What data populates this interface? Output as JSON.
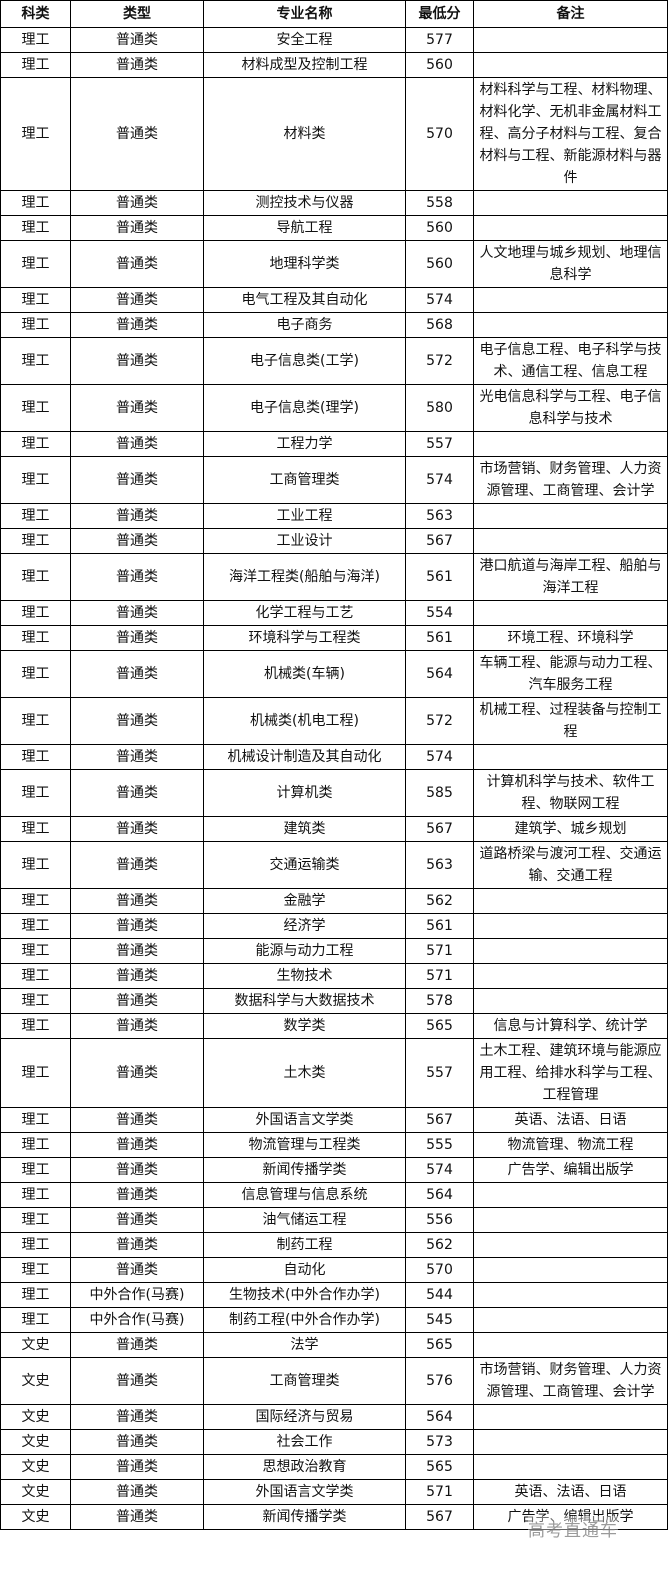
{
  "headers": [
    "科类",
    "类型",
    "专业名称",
    "最低分",
    "备注"
  ],
  "rows": [
    [
      "理工",
      "普通类",
      "安全工程",
      "577",
      ""
    ],
    [
      "理工",
      "普通类",
      "材料成型及控制工程",
      "560",
      ""
    ],
    [
      "理工",
      "普通类",
      "材料类",
      "570",
      "材料科学与工程、材料物理、材料化学、无机非金属材料工程、高分子材料与工程、复合材料与工程、新能源材料与器件"
    ],
    [
      "理工",
      "普通类",
      "测控技术与仪器",
      "558",
      ""
    ],
    [
      "理工",
      "普通类",
      "导航工程",
      "560",
      ""
    ],
    [
      "理工",
      "普通类",
      "地理科学类",
      "560",
      "人文地理与城乡规划、地理信息科学"
    ],
    [
      "理工",
      "普通类",
      "电气工程及其自动化",
      "574",
      ""
    ],
    [
      "理工",
      "普通类",
      "电子商务",
      "568",
      ""
    ],
    [
      "理工",
      "普通类",
      "电子信息类(工学)",
      "572",
      "电子信息工程、电子科学与技术、通信工程、信息工程"
    ],
    [
      "理工",
      "普通类",
      "电子信息类(理学)",
      "580",
      "光电信息科学与工程、电子信息科学与技术"
    ],
    [
      "理工",
      "普通类",
      "工程力学",
      "557",
      ""
    ],
    [
      "理工",
      "普通类",
      "工商管理类",
      "574",
      "市场营销、财务管理、人力资源管理、工商管理、会计学"
    ],
    [
      "理工",
      "普通类",
      "工业工程",
      "563",
      ""
    ],
    [
      "理工",
      "普通类",
      "工业设计",
      "567",
      ""
    ],
    [
      "理工",
      "普通类",
      "海洋工程类(船舶与海洋)",
      "561",
      "港口航道与海岸工程、船舶与海洋工程"
    ],
    [
      "理工",
      "普通类",
      "化学工程与工艺",
      "554",
      ""
    ],
    [
      "理工",
      "普通类",
      "环境科学与工程类",
      "561",
      "环境工程、环境科学"
    ],
    [
      "理工",
      "普通类",
      "机械类(车辆)",
      "564",
      "车辆工程、能源与动力工程、汽车服务工程"
    ],
    [
      "理工",
      "普通类",
      "机械类(机电工程)",
      "572",
      "机械工程、过程装备与控制工程"
    ],
    [
      "理工",
      "普通类",
      "机械设计制造及其自动化",
      "574",
      ""
    ],
    [
      "理工",
      "普通类",
      "计算机类",
      "585",
      "计算机科学与技术、软件工程、物联网工程"
    ],
    [
      "理工",
      "普通类",
      "建筑类",
      "567",
      "建筑学、城乡规划"
    ],
    [
      "理工",
      "普通类",
      "交通运输类",
      "563",
      "道路桥梁与渡河工程、交通运输、交通工程"
    ],
    [
      "理工",
      "普通类",
      "金融学",
      "562",
      ""
    ],
    [
      "理工",
      "普通类",
      "经济学",
      "561",
      ""
    ],
    [
      "理工",
      "普通类",
      "能源与动力工程",
      "571",
      ""
    ],
    [
      "理工",
      "普通类",
      "生物技术",
      "571",
      ""
    ],
    [
      "理工",
      "普通类",
      "数据科学与大数据技术",
      "578",
      ""
    ],
    [
      "理工",
      "普通类",
      "数学类",
      "565",
      "信息与计算科学、统计学"
    ],
    [
      "理工",
      "普通类",
      "土木类",
      "557",
      "土木工程、建筑环境与能源应用工程、给排水科学与工程、工程管理"
    ],
    [
      "理工",
      "普通类",
      "外国语言文学类",
      "567",
      "英语、法语、日语"
    ],
    [
      "理工",
      "普通类",
      "物流管理与工程类",
      "555",
      "物流管理、物流工程"
    ],
    [
      "理工",
      "普通类",
      "新闻传播学类",
      "574",
      "广告学、编辑出版学"
    ],
    [
      "理工",
      "普通类",
      "信息管理与信息系统",
      "564",
      ""
    ],
    [
      "理工",
      "普通类",
      "油气储运工程",
      "556",
      ""
    ],
    [
      "理工",
      "普通类",
      "制药工程",
      "562",
      ""
    ],
    [
      "理工",
      "普通类",
      "自动化",
      "570",
      ""
    ],
    [
      "理工",
      "中外合作(马赛)",
      "生物技术(中外合作办学)",
      "544",
      ""
    ],
    [
      "理工",
      "中外合作(马赛)",
      "制药工程(中外合作办学)",
      "545",
      ""
    ],
    [
      "文史",
      "普通类",
      "法学",
      "565",
      ""
    ],
    [
      "文史",
      "普通类",
      "工商管理类",
      "576",
      "市场营销、财务管理、人力资源管理、工商管理、会计学"
    ],
    [
      "文史",
      "普通类",
      "国际经济与贸易",
      "564",
      ""
    ],
    [
      "文史",
      "普通类",
      "社会工作",
      "573",
      ""
    ],
    [
      "文史",
      "普通类",
      "思想政治教育",
      "565",
      ""
    ],
    [
      "文史",
      "普通类",
      "外国语言文学类",
      "571",
      "英语、法语、日语"
    ],
    [
      "文史",
      "普通类",
      "新闻传播学类",
      "567",
      "广告学、编辑出版学"
    ]
  ],
  "watermark": "高考直通车"
}
